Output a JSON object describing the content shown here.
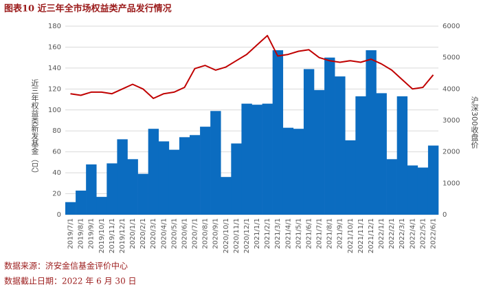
{
  "chart_data": {
    "type": "combo",
    "title": "图表10 近三年全市场权益类产品发行情况",
    "y_label": "近三年权益类新发基金（只）",
    "y2_label": "沪深300收盘价",
    "source": "数据来源：济安金信基金评价中心",
    "cutoff": "数据截止日期：2022 年 6 月 30 日",
    "categories": [
      "2019/7/1",
      "2019/8/1",
      "2019/9/1",
      "2019/10/1",
      "2019/11/1",
      "2019/12/1",
      "2020/1/1",
      "2020/2/1",
      "2020/3/1",
      "2020/4/1",
      "2020/5/1",
      "2020/6/1",
      "2020/7/1",
      "2020/8/1",
      "2020/9/1",
      "2020/10/1",
      "2020/11/1",
      "2020/12/1",
      "2021/1/1",
      "2021/2/1",
      "2021/3/1",
      "2021/4/1",
      "2021/5/1",
      "2021/6/1",
      "2021/7/1",
      "2021/8/1",
      "2021/9/1",
      "2021/10/1",
      "2021/11/1",
      "2021/12/1",
      "2022/1/1",
      "2022/2/1",
      "2022/3/1",
      "2022/4/1",
      "2022/5/1",
      "2022/6/1"
    ],
    "series": [
      {
        "type": "bar",
        "color": "#0b6cc0",
        "values": [
          12,
          23,
          48,
          17,
          49,
          72,
          53,
          39,
          82,
          70,
          62,
          74,
          76,
          84,
          99,
          36,
          68,
          106,
          105,
          106,
          157,
          83,
          82,
          139,
          119,
          150,
          132,
          71,
          113,
          157,
          116,
          53,
          113,
          47,
          45,
          66
        ]
      },
      {
        "type": "line",
        "color": "#c00000",
        "axis": "y2",
        "values": [
          3850,
          3800,
          3900,
          3900,
          3850,
          4000,
          4150,
          4000,
          3700,
          3850,
          3900,
          4050,
          4650,
          4750,
          4600,
          4700,
          4900,
          5100,
          5400,
          5700,
          5050,
          5100,
          5200,
          5250,
          5000,
          4900,
          4850,
          4900,
          4850,
          4950,
          4800,
          4600,
          4300,
          4000,
          4050,
          4450
        ]
      }
    ],
    "ylim": [
      0,
      180
    ],
    "yticks": [
      0,
      20,
      40,
      60,
      80,
      100,
      120,
      140,
      160,
      180
    ],
    "y2lim": [
      0,
      6000
    ],
    "y2ticks": [
      0,
      1000,
      2000,
      3000,
      4000,
      5000,
      6000
    ],
    "grid": true
  }
}
